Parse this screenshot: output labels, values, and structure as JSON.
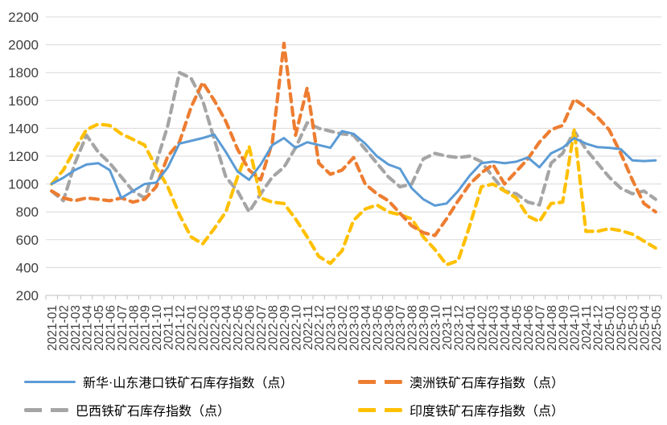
{
  "chart_data": {
    "type": "line",
    "title": "",
    "xlabel": "",
    "ylabel": "",
    "grid": true,
    "legend_position": "bottom",
    "y_axis": {
      "min": 200,
      "max": 2200,
      "step": 200
    },
    "y_ticks": [
      200,
      400,
      600,
      800,
      1000,
      1200,
      1400,
      1600,
      1800,
      2000,
      2200
    ],
    "x": [
      "2021-01",
      "2021-02",
      "2021-03",
      "2021-04",
      "2021-05",
      "2021-06",
      "2021-07",
      "2021-08",
      "2021-09",
      "2021-10",
      "2021-11",
      "2021-12",
      "2022-01",
      "2022-02",
      "2022-03",
      "2022-04",
      "2022-05",
      "2022-06",
      "2022-07",
      "2022-08",
      "2022-09",
      "2022-10",
      "2022-11",
      "2022-12",
      "2023-01",
      "2023-02",
      "2023-03",
      "2023-04",
      "2023-05",
      "2023-06",
      "2023-07",
      "2023-08",
      "2023-09",
      "2023-10",
      "2023-11",
      "2023-12",
      "2024-01",
      "2024-02",
      "2024-03",
      "2024-04",
      "2024-05",
      "2024-06",
      "2024-07",
      "2024-08",
      "2024-09",
      "2024-10",
      "2024-11",
      "2024-12",
      "2025-01",
      "2025-02",
      "2025-03",
      "2025-04",
      "2025-05"
    ],
    "series": [
      {
        "name": "新华·山东港口铁矿石库存指数（点）",
        "color": "#5B9BD5",
        "style": "solid",
        "values": [
          1000,
          1045,
          1100,
          1140,
          1150,
          1100,
          900,
          950,
          1000,
          1010,
          1120,
          1290,
          1310,
          1330,
          1355,
          1230,
          1090,
          1030,
          1140,
          1280,
          1330,
          1260,
          1300,
          1280,
          1260,
          1380,
          1360,
          1290,
          1200,
          1140,
          1110,
          970,
          890,
          845,
          860,
          950,
          1060,
          1150,
          1160,
          1150,
          1160,
          1190,
          1120,
          1220,
          1260,
          1330,
          1290,
          1265,
          1260,
          1250,
          1170,
          1165,
          1170
        ]
      },
      {
        "name": "澳洲铁矿石库存指数（点）",
        "color": "#ED7D31",
        "style": "dashed",
        "values": [
          950,
          900,
          880,
          900,
          890,
          880,
          900,
          870,
          890,
          980,
          1200,
          1300,
          1550,
          1730,
          1600,
          1450,
          1250,
          1100,
          1030,
          1300,
          2010,
          1350,
          1690,
          1150,
          1070,
          1100,
          1190,
          1000,
          930,
          880,
          790,
          700,
          650,
          630,
          750,
          880,
          1000,
          1080,
          1140,
          1000,
          1090,
          1180,
          1300,
          1390,
          1420,
          1610,
          1550,
          1480,
          1390,
          1220,
          1030,
          860,
          800
        ]
      },
      {
        "name": "巴西铁矿石库存指数（点）",
        "color": "#A5A5A5",
        "style": "dashed",
        "values": [
          950,
          880,
          1150,
          1350,
          1230,
          1150,
          1050,
          950,
          900,
          1150,
          1420,
          1800,
          1760,
          1600,
          1320,
          1050,
          950,
          800,
          930,
          1050,
          1120,
          1260,
          1440,
          1400,
          1380,
          1360,
          1350,
          1250,
          1150,
          1050,
          980,
          1000,
          1180,
          1220,
          1200,
          1190,
          1200,
          1160,
          1050,
          950,
          930,
          870,
          850,
          1150,
          1220,
          1380,
          1250,
          1150,
          1050,
          970,
          930,
          950,
          890
        ]
      },
      {
        "name": "印度铁矿石库存指数（点）",
        "color": "#FFC000",
        "style": "dashed",
        "values": [
          1000,
          1100,
          1250,
          1390,
          1430,
          1420,
          1360,
          1320,
          1280,
          1120,
          980,
          780,
          620,
          570,
          680,
          800,
          1050,
          1270,
          900,
          870,
          860,
          750,
          620,
          480,
          430,
          520,
          740,
          820,
          850,
          800,
          780,
          750,
          620,
          530,
          420,
          450,
          700,
          980,
          1000,
          950,
          900,
          770,
          730,
          860,
          870,
          1390,
          660,
          660,
          680,
          665,
          640,
          590,
          540
        ]
      }
    ],
    "colors": {
      "gridline": "#D9D9D9",
      "axis": "#BFBFBF",
      "tick_label": "#404040"
    }
  }
}
